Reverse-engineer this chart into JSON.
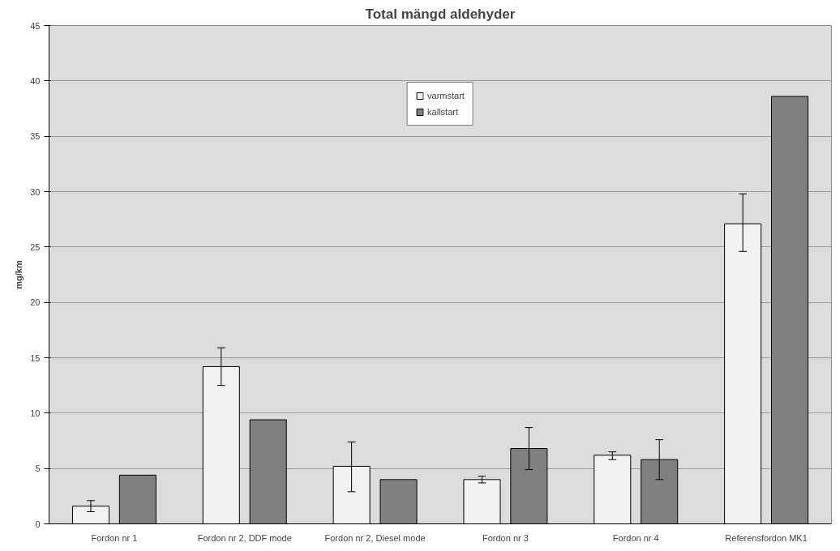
{
  "chart_data": {
    "type": "bar",
    "title": "Total mängd aldehyder",
    "ylabel": "mg/km",
    "categories": [
      "Fordon nr 1",
      "Fordon nr 2, DDF mode",
      "Fordon nr 2, Diesel mode",
      "Fordon nr 3",
      "Fordon nr 4",
      "Referensfordon MK1"
    ],
    "series": [
      {
        "name": "varmstart",
        "color": "#f2f2f2",
        "values": [
          1.6,
          14.2,
          5.2,
          4.0,
          6.2,
          27.1
        ],
        "errors": [
          [
            1.1,
            2.1
          ],
          [
            12.5,
            15.9
          ],
          [
            2.9,
            7.4
          ],
          [
            3.7,
            4.3
          ],
          [
            5.8,
            6.5
          ],
          [
            24.6,
            29.8
          ]
        ]
      },
      {
        "name": "kallstart",
        "color": "#808080",
        "values": [
          4.4,
          9.4,
          4.0,
          6.8,
          5.8,
          38.6
        ],
        "errors": [
          null,
          null,
          null,
          [
            4.9,
            8.7
          ],
          [
            4.0,
            7.6
          ],
          null
        ]
      }
    ],
    "ylim": [
      0,
      45
    ],
    "yticks": [
      0,
      5,
      10,
      15,
      20,
      25,
      30,
      35,
      40,
      45
    ],
    "grid": "y",
    "legend": "top"
  }
}
